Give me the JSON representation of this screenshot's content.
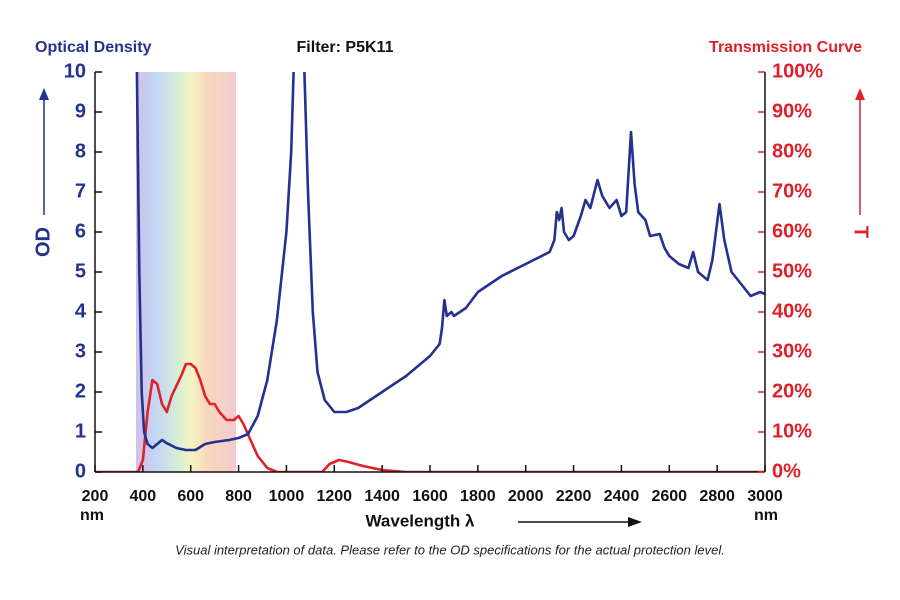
{
  "chart_data": {
    "type": "line",
    "title": "Filter: P5K11",
    "x_label": "Wavelength λ",
    "x_unit": "nm",
    "y_label": "OD",
    "y2_label": "T",
    "note": "Visual interpretation of data. Please refer to the OD specifications for the actual protection level.",
    "xlim": [
      200,
      3000
    ],
    "xticks": [
      200,
      400,
      600,
      800,
      1000,
      1200,
      1400,
      1600,
      1800,
      2000,
      2200,
      2400,
      2600,
      2800,
      3000
    ],
    "ylim": [
      0,
      10
    ],
    "yticks": [
      0,
      1,
      2,
      3,
      4,
      5,
      6,
      7,
      8,
      9,
      10
    ],
    "y2lim": [
      0,
      100
    ],
    "y2ticks": [
      {
        "value": 0,
        "label": "0%"
      },
      {
        "value": 10,
        "label": "10%"
      },
      {
        "value": 20,
        "label": "20%"
      },
      {
        "value": 30,
        "label": "30%"
      },
      {
        "value": 40,
        "label": "40%"
      },
      {
        "value": 50,
        "label": "50%"
      },
      {
        "value": 60,
        "label": "60%"
      },
      {
        "value": 70,
        "label": "70%"
      },
      {
        "value": 80,
        "label": "80%"
      },
      {
        "value": 90,
        "label": "90%"
      },
      {
        "value": 100,
        "label": "100%"
      }
    ],
    "grid": false,
    "series": [
      {
        "name": "Optical Density",
        "color": "#24318f",
        "axis": "y",
        "x": [
          375,
          385,
          395,
          405,
          420,
          440,
          460,
          480,
          500,
          540,
          580,
          620,
          660,
          700,
          760,
          800,
          840,
          880,
          920,
          960,
          1000,
          1020,
          1030,
          1050,
          1075,
          1090,
          1110,
          1130,
          1160,
          1200,
          1250,
          1300,
          1400,
          1500,
          1600,
          1640,
          1650,
          1660,
          1670,
          1690,
          1700,
          1750,
          1800,
          1900,
          2000,
          2100,
          2120,
          2130,
          2140,
          2150,
          2160,
          2180,
          2200,
          2230,
          2250,
          2270,
          2300,
          2320,
          2350,
          2380,
          2400,
          2420,
          2440,
          2455,
          2470,
          2500,
          2520,
          2560,
          2580,
          2600,
          2640,
          2680,
          2700,
          2720,
          2760,
          2780,
          2810,
          2830,
          2860,
          2900,
          2940,
          2980,
          3000
        ],
        "values": [
          10,
          5,
          2,
          1,
          0.7,
          0.6,
          0.7,
          0.8,
          0.72,
          0.6,
          0.55,
          0.55,
          0.7,
          0.75,
          0.8,
          0.85,
          0.95,
          1.4,
          2.3,
          3.8,
          6,
          8,
          10,
          null,
          10,
          7,
          4,
          2.5,
          1.8,
          1.5,
          1.5,
          1.6,
          2.0,
          2.4,
          2.9,
          3.2,
          3.6,
          4.3,
          3.9,
          4.0,
          3.9,
          4.1,
          4.5,
          4.9,
          5.2,
          5.5,
          5.8,
          6.5,
          6.3,
          6.6,
          6.0,
          5.8,
          5.9,
          6.4,
          6.8,
          6.6,
          7.3,
          6.9,
          6.6,
          6.8,
          6.4,
          6.5,
          8.5,
          7.2,
          6.5,
          6.3,
          5.9,
          5.95,
          5.6,
          5.4,
          5.2,
          5.1,
          5.5,
          5.0,
          4.8,
          5.3,
          6.7,
          5.8,
          5.0,
          4.7,
          4.4,
          4.5,
          4.45
        ]
      },
      {
        "name": "Transmission Curve",
        "color": "#e0202a",
        "axis": "y2",
        "x": [
          200,
          380,
          400,
          420,
          440,
          460,
          480,
          500,
          520,
          560,
          580,
          600,
          620,
          640,
          660,
          680,
          700,
          720,
          750,
          780,
          800,
          820,
          850,
          880,
          920,
          960,
          1150,
          1180,
          1220,
          1260,
          1320,
          1400,
          1500,
          3000
        ],
        "values": [
          0,
          0,
          3,
          15,
          23,
          22,
          17,
          15,
          19,
          24,
          27,
          27,
          26,
          23,
          19,
          17,
          17,
          15,
          13,
          13,
          14,
          12,
          8,
          4,
          1,
          0,
          0,
          2,
          3,
          2.5,
          1.5,
          0.5,
          0,
          0
        ]
      }
    ]
  }
}
